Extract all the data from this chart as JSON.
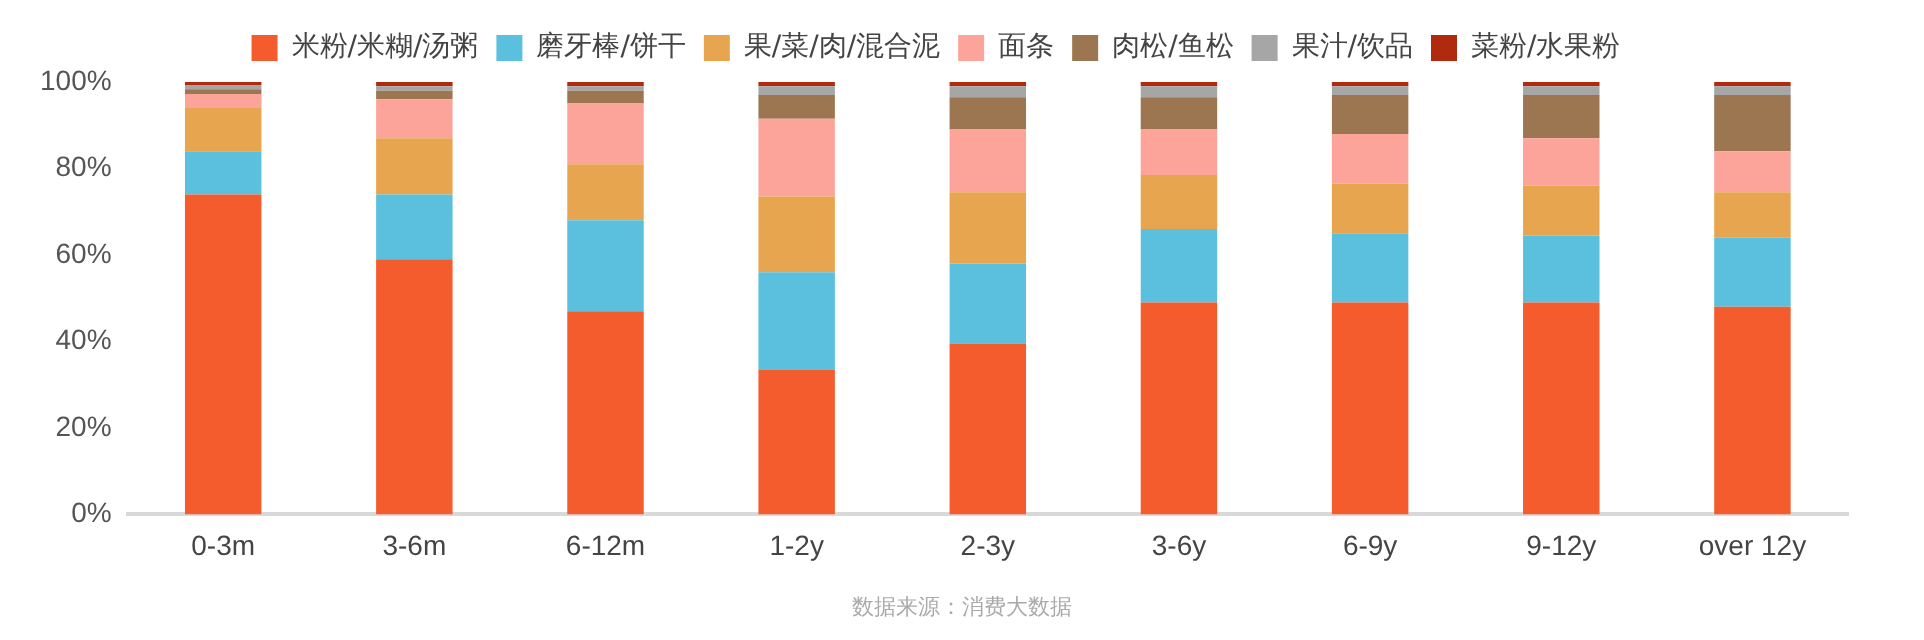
{
  "chart_data": {
    "type": "bar",
    "stacked": true,
    "categories": [
      "0-3m",
      "3-6m",
      "6-12m",
      "1-2y",
      "2-3y",
      "3-6y",
      "6-9y",
      "9-12y",
      "over 12y"
    ],
    "series": [
      {
        "name": "米粉/米糊/汤粥",
        "color": "#f45b2d",
        "values": [
          74,
          59,
          47,
          33.5,
          39.5,
          49,
          49,
          49,
          48
        ]
      },
      {
        "name": "磨牙棒/饼干",
        "color": "#5bc0de",
        "values": [
          10,
          15,
          21,
          22.5,
          18.5,
          17,
          16,
          15.5,
          16
        ]
      },
      {
        "name": "果/菜/肉/混合泥",
        "color": "#e8a54f",
        "values": [
          10,
          13,
          13,
          17.5,
          16.5,
          12.5,
          11.5,
          11.5,
          10.5
        ]
      },
      {
        "name": "面条",
        "color": "#fca39a",
        "values": [
          3.2,
          9,
          14,
          18,
          14.5,
          10.5,
          11.5,
          11,
          9.5
        ]
      },
      {
        "name": "肉松/鱼松",
        "color": "#9b7650",
        "values": [
          1.1,
          2,
          3,
          5.5,
          7.5,
          7.5,
          9,
          10,
          13
        ]
      },
      {
        "name": "果汁/饮品",
        "color": "#a6a6a6",
        "values": [
          1,
          1,
          1,
          2,
          2.5,
          2.5,
          2,
          2,
          2
        ]
      },
      {
        "name": "菜粉/水果粉",
        "color": "#b02a10",
        "values": [
          0.7,
          1,
          1,
          1,
          1,
          1,
          1,
          1,
          1
        ]
      }
    ],
    "ylim": [
      0,
      100
    ],
    "yticks": [
      {
        "value": 0,
        "label": "0%"
      },
      {
        "value": 20,
        "label": "20%"
      },
      {
        "value": 40,
        "label": "40%"
      },
      {
        "value": 60,
        "label": "60%"
      },
      {
        "value": 80,
        "label": "80%"
      },
      {
        "value": 100,
        "label": "100%"
      }
    ],
    "grid": false,
    "legend": "top",
    "annotations": [
      "数据来源：消费大数据"
    ]
  }
}
